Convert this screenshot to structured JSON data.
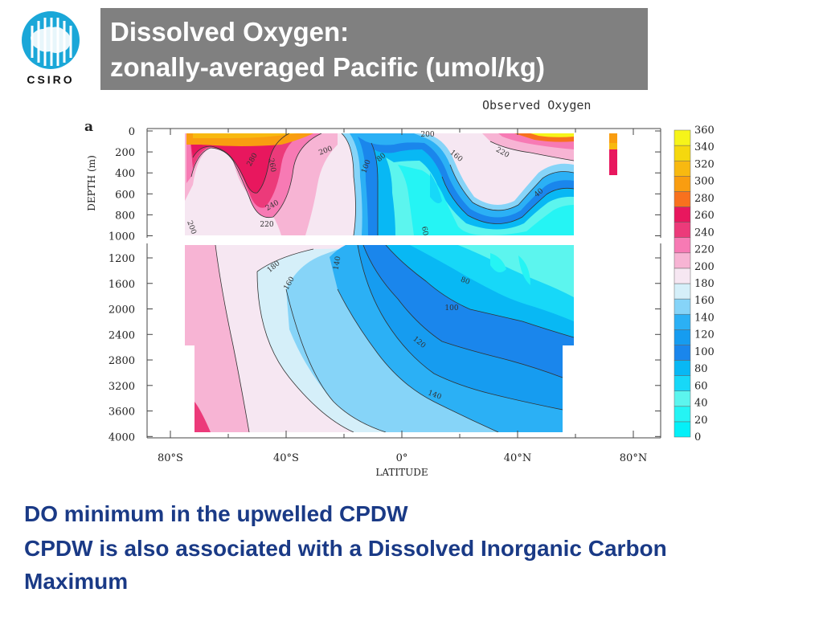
{
  "logo": {
    "text": "CSIRO",
    "color": "#1aa7d8"
  },
  "title": {
    "line1": "Dissolved Oxygen:",
    "line2": "zonally-averaged Pacific (umol/kg)"
  },
  "figure": {
    "caption": "Observed Oxygen",
    "panel": "a"
  },
  "chart_data": {
    "type": "heatmap",
    "title": "Observed Oxygen",
    "xlabel": "LATITUDE",
    "ylabel": "DEPTH (m)",
    "xlim": [
      -90,
      90
    ],
    "x_ticks": [
      "80°S",
      "40°S",
      "0°",
      "40°N",
      "80°N"
    ],
    "y_ticks_upper": [
      "0",
      "200",
      "400",
      "600",
      "800",
      "1000"
    ],
    "y_ticks_lower": [
      "1200",
      "1600",
      "2000",
      "2400",
      "2800",
      "3200",
      "3600",
      "4000"
    ],
    "colorbar_levels": [
      "0",
      "20",
      "40",
      "60",
      "80",
      "100",
      "120",
      "140",
      "160",
      "180",
      "200",
      "220",
      "240",
      "260",
      "280",
      "300",
      "320",
      "340",
      "360"
    ],
    "colorbar_colors": [
      "#05f0f8",
      "#25f4f4",
      "#5cf5ee",
      "#17d8f8",
      "#08b8f4",
      "#1a86ec",
      "#169cf0",
      "#2bb0f5",
      "#86d4f8",
      "#d5eff9",
      "#f6e7f2",
      "#f7b4d4",
      "#f77ab4",
      "#ec3a7a",
      "#e8175e",
      "#f8711e",
      "#f99d10",
      "#f8b910",
      "#f5d80e",
      "#f6f41a"
    ],
    "contour_labels": [
      "200",
      "160",
      "220",
      "280",
      "260",
      "200",
      "100",
      "80",
      "40",
      "240",
      "220",
      "200",
      "60",
      "180",
      "140",
      "160",
      "80",
      "100",
      "120",
      "140"
    ]
  },
  "bullets": {
    "line1": "DO minimum in the upwelled CPDW",
    "line2": "CPDW is also associated with a Dissolved Inorganic Carbon",
    "line3": "Maximum"
  }
}
